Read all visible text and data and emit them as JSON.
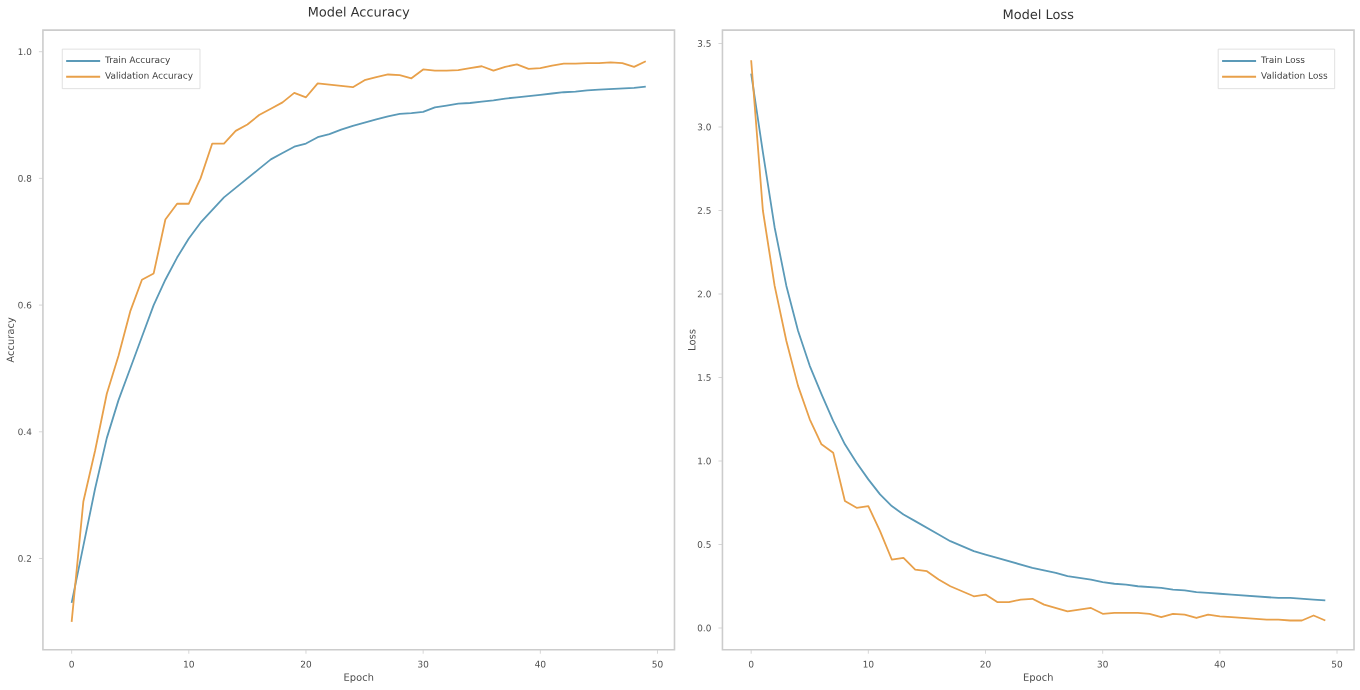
{
  "chart_data": [
    {
      "type": "line",
      "title": "Model Accuracy",
      "xlabel": "Epoch",
      "ylabel": "Accuracy",
      "legend": "top left",
      "grid": false,
      "marker": "none",
      "line_style": "solid",
      "x": [
        0,
        1,
        2,
        3,
        4,
        5,
        6,
        7,
        8,
        9,
        10,
        11,
        12,
        13,
        14,
        15,
        16,
        17,
        18,
        19,
        20,
        21,
        22,
        23,
        24,
        25,
        26,
        27,
        28,
        29,
        30,
        31,
        32,
        33,
        34,
        35,
        36,
        37,
        38,
        39,
        40,
        41,
        42,
        43,
        44,
        45,
        46,
        47,
        48,
        49
      ],
      "xlim": [
        -2.45,
        51.45
      ],
      "ylim": [
        0.056,
        1.034
      ],
      "xticks": [
        0,
        10,
        20,
        30,
        40,
        50
      ],
      "yticks": [
        0.2,
        0.4,
        0.6,
        0.8,
        {
          "value": 1.0,
          "label": "1.0"
        }
      ],
      "series": [
        {
          "name": "Train Accuracy",
          "color": "#5b9ab8",
          "values": [
            0.13,
            0.22,
            0.31,
            0.39,
            0.45,
            0.5,
            0.55,
            0.6,
            0.64,
            0.675,
            0.705,
            0.73,
            0.75,
            0.77,
            0.785,
            0.8,
            0.815,
            0.83,
            0.84,
            0.85,
            0.855,
            0.865,
            0.87,
            0.877,
            0.883,
            0.888,
            0.893,
            0.898,
            0.902,
            0.903,
            0.905,
            0.912,
            0.915,
            0.918,
            0.919,
            0.921,
            0.923,
            0.926,
            0.928,
            0.93,
            0.932,
            0.934,
            0.936,
            0.937,
            0.939,
            0.94,
            0.941,
            0.942,
            0.943,
            0.945
          ]
        },
        {
          "name": "Validation Accuracy",
          "color": "#e8a04a",
          "values": [
            0.1,
            0.29,
            0.37,
            0.46,
            0.52,
            0.59,
            0.64,
            0.65,
            0.735,
            0.76,
            0.76,
            0.8,
            0.855,
            0.855,
            0.875,
            0.885,
            0.9,
            0.91,
            0.92,
            0.935,
            0.928,
            0.95,
            0.948,
            0.946,
            0.944,
            0.955,
            0.96,
            0.964,
            0.963,
            0.958,
            0.972,
            0.97,
            0.97,
            0.971,
            0.974,
            0.977,
            0.97,
            0.976,
            0.98,
            0.973,
            0.974,
            0.978,
            0.981,
            0.981,
            0.982,
            0.982,
            0.983,
            0.982,
            0.976,
            0.985
          ]
        }
      ]
    },
    {
      "type": "line",
      "title": "Model Loss",
      "xlabel": "Epoch",
      "ylabel": "Loss",
      "legend": "top right",
      "grid": false,
      "marker": "none",
      "line_style": "solid",
      "x": [
        0,
        1,
        2,
        3,
        4,
        5,
        6,
        7,
        8,
        9,
        10,
        11,
        12,
        13,
        14,
        15,
        16,
        17,
        18,
        19,
        20,
        21,
        22,
        23,
        24,
        25,
        26,
        27,
        28,
        29,
        30,
        31,
        32,
        33,
        34,
        35,
        36,
        37,
        38,
        39,
        40,
        41,
        42,
        43,
        44,
        45,
        46,
        47,
        48,
        49
      ],
      "xlim": [
        -2.45,
        51.45
      ],
      "ylim": [
        -0.13,
        3.58
      ],
      "xticks": [
        0,
        10,
        20,
        30,
        40,
        50
      ],
      "yticks": [
        {
          "value": 0,
          "label": "0.0"
        },
        0.5,
        {
          "value": 1,
          "label": "1.0"
        },
        1.5,
        {
          "value": 2,
          "label": "2.0"
        },
        2.5,
        {
          "value": 3,
          "label": "3.0"
        },
        3.5
      ],
      "series": [
        {
          "name": "Train Loss",
          "color": "#5b9ab8",
          "values": [
            3.32,
            2.85,
            2.4,
            2.05,
            1.78,
            1.57,
            1.4,
            1.24,
            1.1,
            0.99,
            0.89,
            0.8,
            0.73,
            0.68,
            0.64,
            0.6,
            0.56,
            0.52,
            0.49,
            0.46,
            0.44,
            0.42,
            0.4,
            0.38,
            0.36,
            0.345,
            0.33,
            0.31,
            0.3,
            0.29,
            0.275,
            0.265,
            0.26,
            0.25,
            0.245,
            0.24,
            0.23,
            0.225,
            0.215,
            0.21,
            0.205,
            0.2,
            0.195,
            0.19,
            0.185,
            0.18,
            0.18,
            0.175,
            0.17,
            0.165
          ]
        },
        {
          "name": "Validation Loss",
          "color": "#e8a04a",
          "values": [
            3.4,
            2.5,
            2.05,
            1.72,
            1.45,
            1.25,
            1.1,
            1.05,
            0.76,
            0.72,
            0.73,
            0.58,
            0.41,
            0.42,
            0.35,
            0.34,
            0.29,
            0.25,
            0.22,
            0.19,
            0.2,
            0.155,
            0.155,
            0.17,
            0.175,
            0.14,
            0.12,
            0.1,
            0.11,
            0.12,
            0.085,
            0.09,
            0.09,
            0.09,
            0.085,
            0.065,
            0.085,
            0.08,
            0.06,
            0.08,
            0.07,
            0.065,
            0.06,
            0.055,
            0.05,
            0.05,
            0.045,
            0.045,
            0.075,
            0.045
          ]
        }
      ]
    }
  ]
}
